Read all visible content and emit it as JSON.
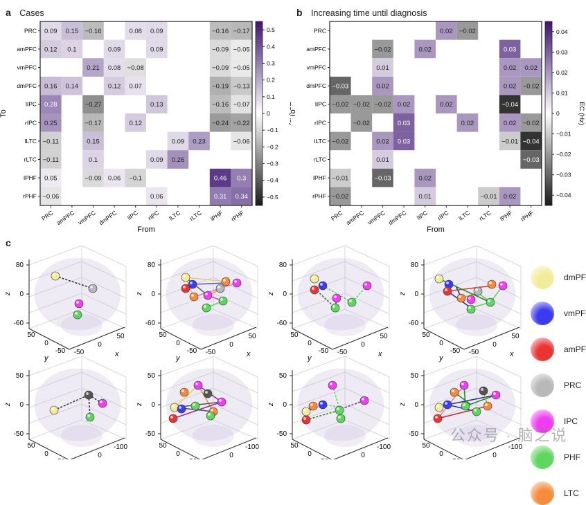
{
  "panels": {
    "a": {
      "letter": "a",
      "title": "Cases"
    },
    "b": {
      "letter": "b",
      "title": "Increasing time until diagnosis"
    },
    "c": {
      "letter": "c"
    }
  },
  "chart_data": [
    {
      "type": "heatmap",
      "id": "a",
      "title": "Cases",
      "xlabel": "From",
      "ylabel": "To",
      "x_categories": [
        "PRC",
        "amPFC",
        "vmPFC",
        "dmPFC",
        "lIPC",
        "rIPC",
        "lLTC",
        "rLTC",
        "lPHF",
        "rPHF"
      ],
      "y_categories": [
        "PRC",
        "amPFC",
        "vmPFC",
        "dmPFC",
        "lIPC",
        "rIPC",
        "lLTC",
        "rLTC",
        "lPHF",
        "rPHF"
      ],
      "values": [
        [
          0.09,
          0.15,
          -0.16,
          null,
          0.08,
          0.09,
          null,
          null,
          -0.16,
          -0.17
        ],
        [
          0.12,
          0.1,
          null,
          0.09,
          null,
          0.09,
          null,
          null,
          -0.09,
          -0.05
        ],
        [
          null,
          null,
          0.21,
          0.08,
          -0.08,
          null,
          null,
          null,
          -0.09,
          -0.05
        ],
        [
          0.16,
          0.14,
          null,
          0.12,
          0.07,
          null,
          null,
          null,
          -0.19,
          -0.13
        ],
        [
          0.28,
          null,
          -0.27,
          null,
          null,
          0.13,
          null,
          null,
          -0.16,
          -0.07
        ],
        [
          0.25,
          null,
          -0.17,
          null,
          0.12,
          null,
          null,
          null,
          -0.24,
          -0.22
        ],
        [
          -0.11,
          null,
          0.15,
          null,
          null,
          null,
          0.09,
          0.23,
          null,
          -0.06
        ],
        [
          -0.11,
          null,
          0.1,
          null,
          null,
          0.09,
          0.26,
          null,
          null,
          null
        ],
        [
          0.05,
          null,
          -0.09,
          0.06,
          -0.1,
          null,
          null,
          null,
          0.46,
          0.3
        ],
        [
          -0.06,
          null,
          null,
          null,
          null,
          0.06,
          null,
          null,
          0.31,
          0.34
        ]
      ],
      "colorbar": {
        "label": "EC (Hz)",
        "range": [
          -0.55,
          0.55
        ],
        "ticks": [
          0.5,
          0.4,
          0.3,
          0.2,
          0.1,
          0,
          -0.1,
          -0.2,
          -0.3,
          -0.4,
          -0.5
        ]
      },
      "colors": {
        "positive_max": "#3d1470",
        "zero": "#ffffff",
        "negative_max": "#1a1a1a"
      }
    },
    {
      "type": "heatmap",
      "id": "b",
      "title": "Increasing time until diagnosis",
      "xlabel": "From",
      "ylabel": "To",
      "x_categories": [
        "PRC",
        "amPFC",
        "vmPFC",
        "dmPFC",
        "lIPC",
        "rIPC",
        "lLTC",
        "rLTC",
        "lPHF",
        "rPHF"
      ],
      "y_categories": [
        "PRC",
        "amPFC",
        "vmPFC",
        "dmPFC",
        "lIPC",
        "rIPC",
        "lLTC",
        "rLTC",
        "lPHF",
        "rPHF"
      ],
      "values": [
        [
          null,
          null,
          null,
          null,
          null,
          0.02,
          -0.02,
          null,
          null,
          null
        ],
        [
          null,
          null,
          -0.02,
          null,
          0.02,
          null,
          null,
          null,
          0.03,
          null
        ],
        [
          null,
          null,
          0.01,
          null,
          null,
          null,
          null,
          null,
          0.02,
          0.02
        ],
        [
          -0.03,
          null,
          0.02,
          null,
          null,
          null,
          null,
          null,
          0.02,
          -0.02
        ],
        [
          -0.02,
          -0.02,
          -0.02,
          0.02,
          null,
          0.02,
          null,
          null,
          -0.04,
          null
        ],
        [
          null,
          -0.02,
          null,
          0.03,
          null,
          null,
          0.02,
          null,
          0.02,
          -0.02
        ],
        [
          -0.02,
          null,
          0.02,
          0.03,
          null,
          null,
          null,
          null,
          -0.01,
          -0.04
        ],
        [
          null,
          null,
          0.01,
          null,
          null,
          null,
          null,
          null,
          null,
          -0.03
        ],
        [
          -0.01,
          null,
          -0.03,
          null,
          0.02,
          null,
          null,
          null,
          null,
          null
        ],
        [
          -0.02,
          null,
          null,
          null,
          0.01,
          null,
          null,
          -0.01,
          0.02,
          null
        ]
      ],
      "colorbar": {
        "label": "EC (Hz)",
        "range": [
          -0.045,
          0.045
        ],
        "ticks": [
          0.04,
          0.03,
          0.02,
          0.01,
          0,
          -0.01,
          -0.02,
          -0.03,
          -0.04
        ]
      },
      "colors": {
        "positive_max": "#3d1470",
        "zero": "#ffffff",
        "negative_max": "#1a1a1a"
      }
    }
  ],
  "brain_plots": {
    "top_row": {
      "z_ticks": [
        "80",
        "0",
        "-60"
      ],
      "y_ticks": [
        "50",
        "0",
        "-50"
      ],
      "x_ticks": [
        "-50",
        "0",
        "50"
      ],
      "axis_labels": {
        "z": "z",
        "y": "y",
        "x": "x"
      }
    },
    "bottom_row": {
      "z_ticks": [
        "50",
        "0",
        "-50"
      ],
      "x_ticks": [
        "50",
        "0",
        "-50"
      ],
      "y_ticks": [
        "50",
        "0",
        "-100"
      ],
      "axis_labels": {
        "z": "z",
        "x": "x",
        "y": "y"
      }
    }
  },
  "legend": [
    {
      "label": "dmPFC",
      "color": "#f2ec9a"
    },
    {
      "label": "vmPFC",
      "color": "#3b3bf0"
    },
    {
      "label": "amPFC",
      "color": "#ea3535"
    },
    {
      "label": "PRC",
      "color": "#b8b8b8"
    },
    {
      "label": "IPC",
      "color": "#ee3ef0"
    },
    {
      "label": "PHF",
      "color": "#5fd65f"
    },
    {
      "label": "LTC",
      "color": "#f58c3c"
    }
  ],
  "watermark": "公众号 · 脑之说"
}
